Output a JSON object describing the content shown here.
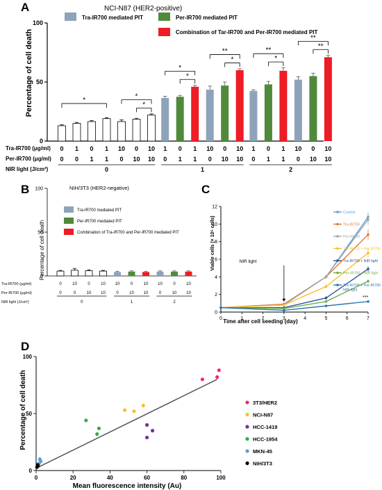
{
  "panels": {
    "A": "A",
    "B": "B",
    "C": "C",
    "D": "D"
  },
  "colors": {
    "tra": "#8ea3ba",
    "per": "#4f8a3b",
    "combo": "#ee1c24",
    "control": "#ffffff",
    "line_control": "#5aa0d8",
    "line_tra": "#e07b39",
    "line_per": "#a5a5a5",
    "line_traper": "#f6c02b",
    "line_tra_nir": "#2f5597",
    "line_per_nir": "#70ad47",
    "line_traper_nir": "#2e75b6"
  },
  "chart_data": [
    {
      "type": "bar",
      "id": "A",
      "title": "NCI-N87 (HER2-positive)",
      "ylabel": "Percentage of cell death",
      "ylim": [
        0,
        100
      ],
      "yticks": [
        0,
        50,
        100
      ],
      "legend": [
        {
          "name": "Tra-IR700 mediated PIT",
          "color": "tra"
        },
        {
          "name": "Per-IR700 mediated PIT",
          "color": "per"
        },
        {
          "name": "Combination of Tar-IR700 and Per-IR700 mediated PIT",
          "color": "combo"
        }
      ],
      "row_labels": [
        "Tra-IR700 (μg/ml)",
        "Per-IR700 (μg/ml)",
        "NIR light (J/cm²)"
      ],
      "tra_values": [
        "0",
        "1",
        "0",
        "1",
        "10",
        "0",
        "10",
        "1",
        "0",
        "1",
        "10",
        "0",
        "10",
        "1",
        "0",
        "1",
        "10",
        "0",
        "10"
      ],
      "per_values": [
        "0",
        "0",
        "1",
        "1",
        "0",
        "10",
        "10",
        "0",
        "1",
        "1",
        "0",
        "10",
        "10",
        "0",
        "1",
        "1",
        "0",
        "10",
        "10"
      ],
      "nir_groups": [
        {
          "label": "0",
          "from": 0,
          "to": 6
        },
        {
          "label": "1",
          "from": 7,
          "to": 12
        },
        {
          "label": "2",
          "from": 13,
          "to": 18
        }
      ],
      "bars": [
        {
          "value": 13,
          "err": 0.8,
          "color": "control"
        },
        {
          "value": 15,
          "err": 0.8,
          "color": "control"
        },
        {
          "value": 16.5,
          "err": 0.8,
          "color": "control"
        },
        {
          "value": 19,
          "err": 0.8,
          "color": "control"
        },
        {
          "value": 16.5,
          "err": 1.5,
          "color": "control"
        },
        {
          "value": 18.5,
          "err": 0.8,
          "color": "control"
        },
        {
          "value": 22,
          "err": 1.0,
          "color": "control"
        },
        {
          "value": 36.5,
          "err": 1.5,
          "color": "tra"
        },
        {
          "value": 37.5,
          "err": 1.2,
          "color": "per"
        },
        {
          "value": 46,
          "err": 1.2,
          "color": "combo"
        },
        {
          "value": 43.5,
          "err": 3.0,
          "color": "tra"
        },
        {
          "value": 47,
          "err": 3.0,
          "color": "per"
        },
        {
          "value": 60,
          "err": 1.2,
          "color": "combo"
        },
        {
          "value": 42.5,
          "err": 1.0,
          "color": "tra"
        },
        {
          "value": 48,
          "err": 2.5,
          "color": "per"
        },
        {
          "value": 59.5,
          "err": 2.5,
          "color": "combo"
        },
        {
          "value": 52,
          "err": 2.5,
          "color": "tra"
        },
        {
          "value": 55,
          "err": 2.5,
          "color": "per"
        },
        {
          "value": 71,
          "err": 1.5,
          "color": "combo"
        }
      ],
      "significance": [
        {
          "a": 0,
          "b": 3,
          "label": "*"
        },
        {
          "a": 4,
          "b": 6,
          "label": "*"
        },
        {
          "a": 5,
          "b": 6,
          "label": "*"
        },
        {
          "a": 7,
          "b": 9,
          "label": "*"
        },
        {
          "a": 8,
          "b": 9,
          "label": "*"
        },
        {
          "a": 10,
          "b": 12,
          "label": "**"
        },
        {
          "a": 11,
          "b": 12,
          "label": "*"
        },
        {
          "a": 13,
          "b": 15,
          "label": "**"
        },
        {
          "a": 14,
          "b": 15,
          "label": "*"
        },
        {
          "a": 16,
          "b": 18,
          "label": "**"
        },
        {
          "a": 17,
          "b": 18,
          "label": "**"
        }
      ]
    },
    {
      "type": "bar",
      "id": "B",
      "title": "NIH/3T3 (HER2-negative)",
      "ylabel": "Percentage of cell death",
      "ylim": [
        0,
        100
      ],
      "yticks": [
        0,
        50,
        100
      ],
      "legend": [
        {
          "name": "Tra-IR700 mediated PIT",
          "color": "tra"
        },
        {
          "name": "Per-IR700 mediated PIT",
          "color": "per"
        },
        {
          "name": "Combination of Tra-IR700 and Per-IR700 mediated PIT",
          "color": "combo"
        }
      ],
      "row_labels": [
        "Tra-IR700 (μg/ml)",
        "Per-IR700 (μg/ml)",
        "NIR light (J/cm²)"
      ],
      "tra_values": [
        "0",
        "10",
        "0",
        "10",
        "10",
        "0",
        "10",
        "10",
        "0",
        "10"
      ],
      "per_values": [
        "0",
        "0",
        "10",
        "10",
        "0",
        "10",
        "10",
        "0",
        "10",
        "10"
      ],
      "nir_groups": [
        {
          "label": "0",
          "from": 0,
          "to": 3
        },
        {
          "label": "1",
          "from": 4,
          "to": 6
        },
        {
          "label": "2",
          "from": 7,
          "to": 9
        }
      ],
      "bars": [
        {
          "value": 5.5,
          "err": 0.8,
          "color": "control"
        },
        {
          "value": 6.5,
          "err": 2.0,
          "color": "control"
        },
        {
          "value": 6,
          "err": 1.0,
          "color": "control"
        },
        {
          "value": 5.5,
          "err": 0.8,
          "color": "control"
        },
        {
          "value": 4.5,
          "err": 0.8,
          "color": "tra"
        },
        {
          "value": 5,
          "err": 0.8,
          "color": "per"
        },
        {
          "value": 4.5,
          "err": 0.8,
          "color": "combo"
        },
        {
          "value": 5,
          "err": 0.8,
          "color": "tra"
        },
        {
          "value": 5,
          "err": 0.8,
          "color": "per"
        },
        {
          "value": 5,
          "err": 0.8,
          "color": "combo"
        }
      ]
    },
    {
      "type": "line",
      "id": "C",
      "xlabel": "Time after cell seeding (day)",
      "ylabel": "Viable cells (× 10⁵ cells)",
      "xlim": [
        0,
        7
      ],
      "ylim": [
        0,
        12
      ],
      "xticks": [
        0,
        1,
        2,
        3,
        4,
        5,
        6,
        7
      ],
      "yticks": [
        0,
        2,
        4,
        6,
        8,
        10,
        12
      ],
      "x": [
        0,
        3,
        5,
        7
      ],
      "annotation": {
        "text": "NIR light",
        "x": 3
      },
      "significance_label": "***",
      "series": [
        {
          "name": "Control",
          "color": "line_control",
          "values": [
            0.5,
            0.9,
            4.0,
            10.8
          ],
          "err": [
            0.05,
            0.1,
            0.2,
            0.5
          ]
        },
        {
          "name": "Tra-IR700",
          "color": "line_tra",
          "values": [
            0.5,
            0.9,
            4.0,
            8.8
          ],
          "err": [
            0.05,
            0.1,
            0.2,
            0.6
          ]
        },
        {
          "name": "Per-IR700",
          "color": "line_per",
          "values": [
            0.5,
            0.8,
            4.0,
            10.5
          ],
          "err": [
            0.05,
            0.1,
            0.2,
            0.6
          ]
        },
        {
          "name": "Tra-IR700 + Per-IR700",
          "color": "line_traper",
          "values": [
            0.5,
            0.8,
            2.9,
            6.7
          ],
          "err": [
            0.05,
            0.1,
            0.2,
            0.5
          ]
        },
        {
          "name": "Tra-IR700 + NIR light",
          "color": "line_tra_nir",
          "values": [
            0.5,
            0.5,
            1.6,
            4.9
          ],
          "err": [
            0.05,
            0.05,
            0.2,
            0.3
          ]
        },
        {
          "name": "Per-IR700 + NIR light",
          "color": "line_per_nir",
          "values": [
            0.5,
            0.4,
            1.2,
            3.5
          ],
          "err": [
            0.05,
            0.05,
            0.15,
            0.2
          ]
        },
        {
          "name": "Tra-IR700 + Per-IR700 + NIR light",
          "color": "line_traper_nir",
          "values": [
            0.5,
            0.2,
            0.7,
            1.2
          ],
          "err": [
            0.05,
            0.05,
            0.1,
            0.1
          ]
        }
      ]
    },
    {
      "type": "scatter",
      "id": "D",
      "xlabel": "Mean fluorescence intensity (Au)",
      "ylabel": "Percentage of cell death",
      "xlim": [
        0,
        100
      ],
      "ylim": [
        0,
        100
      ],
      "xticks": [
        0,
        20,
        40,
        60,
        80,
        100
      ],
      "yticks": [
        0,
        50,
        100
      ],
      "trendline": [
        [
          0,
          2
        ],
        [
          98,
          80
        ]
      ],
      "series": [
        {
          "name": "3T3/HER2",
          "color": "#f0287a",
          "points": [
            [
              90,
              80
            ],
            [
              98,
              82
            ],
            [
              99,
              88
            ]
          ]
        },
        {
          "name": "NCI-N87",
          "color": "#f6c02b",
          "points": [
            [
              48,
              53
            ],
            [
              53,
              52
            ],
            [
              58,
              57
            ]
          ]
        },
        {
          "name": "HCC-1419",
          "color": "#7030a0",
          "points": [
            [
              60,
              40
            ],
            [
              63,
              35
            ],
            [
              60,
              29
            ]
          ]
        },
        {
          "name": "HCC-1954",
          "color": "#2fae4a",
          "points": [
            [
              27,
              44
            ],
            [
              34,
              37
            ],
            [
              33,
              32
            ]
          ]
        },
        {
          "name": "MKN-45",
          "color": "#5aa0d8",
          "points": [
            [
              2,
              10
            ],
            [
              1.5,
              6
            ],
            [
              2.5,
              8
            ]
          ]
        },
        {
          "name": "NIH/3T3",
          "color": "#000000",
          "points": [
            [
              0.5,
              3
            ],
            [
              1,
              4
            ],
            [
              0.8,
              5
            ]
          ]
        }
      ]
    }
  ]
}
